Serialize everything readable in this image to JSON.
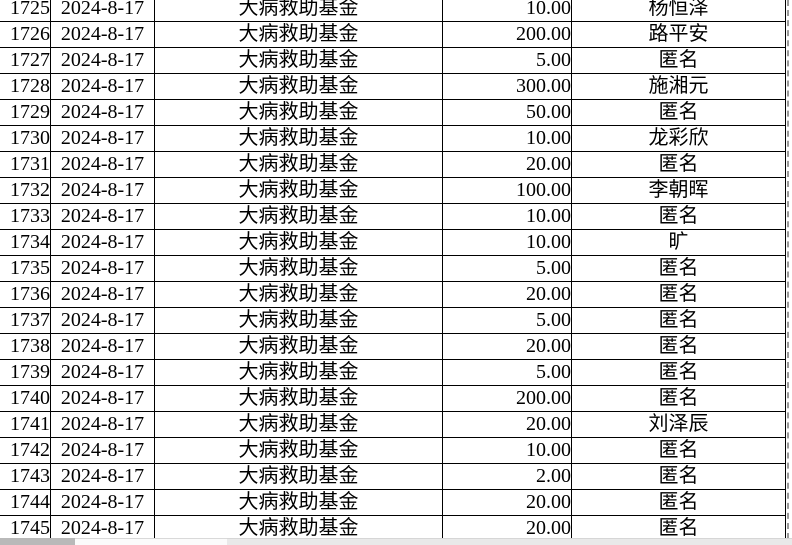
{
  "table": {
    "description_fund_label": "大病救助基金",
    "rows": [
      {
        "id": "1725",
        "date": "2024-8-17",
        "fund": "大病救助基金",
        "amount": "10.00",
        "donor": "杨恒泽"
      },
      {
        "id": "1726",
        "date": "2024-8-17",
        "fund": "大病救助基金",
        "amount": "200.00",
        "donor": "路平安"
      },
      {
        "id": "1727",
        "date": "2024-8-17",
        "fund": "大病救助基金",
        "amount": "5.00",
        "donor": "匿名"
      },
      {
        "id": "1728",
        "date": "2024-8-17",
        "fund": "大病救助基金",
        "amount": "300.00",
        "donor": "施湘元"
      },
      {
        "id": "1729",
        "date": "2024-8-17",
        "fund": "大病救助基金",
        "amount": "50.00",
        "donor": "匿名"
      },
      {
        "id": "1730",
        "date": "2024-8-17",
        "fund": "大病救助基金",
        "amount": "10.00",
        "donor": "龙彩欣"
      },
      {
        "id": "1731",
        "date": "2024-8-17",
        "fund": "大病救助基金",
        "amount": "20.00",
        "donor": "匿名"
      },
      {
        "id": "1732",
        "date": "2024-8-17",
        "fund": "大病救助基金",
        "amount": "100.00",
        "donor": "李朝晖"
      },
      {
        "id": "1733",
        "date": "2024-8-17",
        "fund": "大病救助基金",
        "amount": "10.00",
        "donor": "匿名"
      },
      {
        "id": "1734",
        "date": "2024-8-17",
        "fund": "大病救助基金",
        "amount": "10.00",
        "donor": "旷"
      },
      {
        "id": "1735",
        "date": "2024-8-17",
        "fund": "大病救助基金",
        "amount": "5.00",
        "donor": "匿名"
      },
      {
        "id": "1736",
        "date": "2024-8-17",
        "fund": "大病救助基金",
        "amount": "20.00",
        "donor": "匿名"
      },
      {
        "id": "1737",
        "date": "2024-8-17",
        "fund": "大病救助基金",
        "amount": "5.00",
        "donor": "匿名"
      },
      {
        "id": "1738",
        "date": "2024-8-17",
        "fund": "大病救助基金",
        "amount": "20.00",
        "donor": "匿名"
      },
      {
        "id": "1739",
        "date": "2024-8-17",
        "fund": "大病救助基金",
        "amount": "5.00",
        "donor": "匿名"
      },
      {
        "id": "1740",
        "date": "2024-8-17",
        "fund": "大病救助基金",
        "amount": "200.00",
        "donor": "匿名"
      },
      {
        "id": "1741",
        "date": "2024-8-17",
        "fund": "大病救助基金",
        "amount": "20.00",
        "donor": "刘泽辰"
      },
      {
        "id": "1742",
        "date": "2024-8-17",
        "fund": "大病救助基金",
        "amount": "10.00",
        "donor": "匿名"
      },
      {
        "id": "1743",
        "date": "2024-8-17",
        "fund": "大病救助基金",
        "amount": "2.00",
        "donor": "匿名"
      },
      {
        "id": "1744",
        "date": "2024-8-17",
        "fund": "大病救助基金",
        "amount": "20.00",
        "donor": "匿名"
      },
      {
        "id": "1745",
        "date": "2024-8-17",
        "fund": "大病救助基金",
        "amount": "20.00",
        "donor": "匿名"
      }
    ]
  },
  "colors": {
    "grid_line": "#000000",
    "text": "#000000",
    "page_break_line": "#9b9b9b",
    "bottom_bar_left": "#b9b9b9",
    "bottom_bar_tab": "#fbfbfb",
    "bottom_bar_track": "#e9e9e9"
  }
}
